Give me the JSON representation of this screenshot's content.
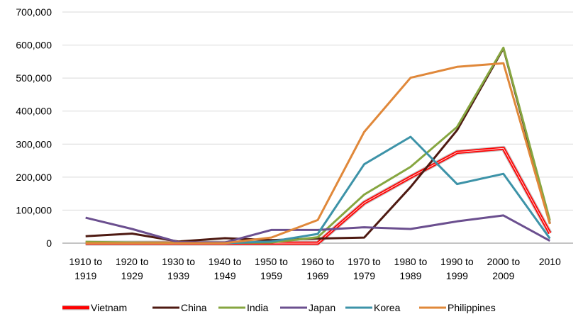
{
  "chart_data": {
    "type": "line",
    "title": "",
    "xlabel": "",
    "ylabel": "",
    "ylim": [
      0,
      700000
    ],
    "yticks": [
      "0",
      "100,000",
      "200,000",
      "300,000",
      "400,000",
      "500,000",
      "600,000",
      "700,000"
    ],
    "grid": "horizontal",
    "legend_position": "bottom",
    "categories": [
      [
        "1910 to",
        "1919"
      ],
      [
        "1920 to",
        "1929"
      ],
      [
        "1930 to",
        "1939"
      ],
      [
        "1940 to",
        "1949"
      ],
      [
        "1950 to",
        "1959"
      ],
      [
        "1960 to",
        "1969"
      ],
      [
        "1970 to",
        "1979"
      ],
      [
        "1980 to",
        "1989"
      ],
      [
        "1990 to",
        "1999"
      ],
      [
        "2000 to",
        "2009"
      ],
      [
        "2010"
      ]
    ],
    "series": [
      {
        "name": "Vietnam",
        "color": "#ff0000",
        "values": [
          0,
          0,
          0,
          0,
          0,
          0,
          122000,
          200000,
          275000,
          287000,
          30000
        ]
      },
      {
        "name": "China",
        "color": "#4e1a12",
        "values": [
          21000,
          29000,
          5000,
          15000,
          9000,
          14000,
          17000,
          170000,
          342000,
          590000,
          60000
        ]
      },
      {
        "name": "India",
        "color": "#86a640",
        "values": [
          4000,
          2000,
          1000,
          1000,
          2000,
          18000,
          147000,
          231000,
          352000,
          592000,
          69000
        ]
      },
      {
        "name": "Japan",
        "color": "#6b4f8f",
        "values": [
          77000,
          43000,
          3000,
          2000,
          40000,
          40000,
          48000,
          43000,
          66000,
          84000,
          7000
        ]
      },
      {
        "name": "Korea",
        "color": "#3d93a8",
        "values": [
          0,
          0,
          0,
          0,
          5000,
          28000,
          239000,
          322000,
          179000,
          210000,
          14000
        ]
      },
      {
        "name": "Philippines",
        "color": "#e0883a",
        "values": [
          0,
          0,
          0,
          0,
          17000,
          70000,
          337000,
          501000,
          534000,
          545000,
          58000
        ]
      }
    ]
  }
}
